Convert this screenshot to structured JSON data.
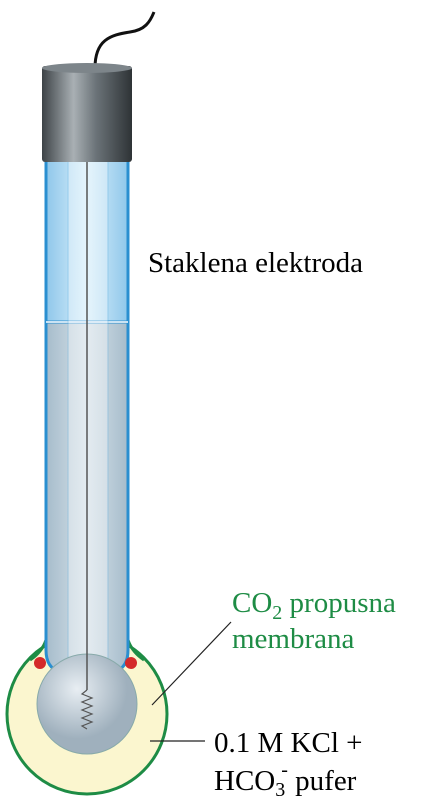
{
  "labels": {
    "electrode": "Staklena elektroda",
    "membrane": {
      "lines": [
        [
          "CO",
          "2",
          " propusna"
        ],
        [
          "membrana"
        ]
      ]
    },
    "buffer": {
      "lines": [
        [
          "0.1 M KCl +"
        ],
        [
          "HCO",
          "3",
          "-",
          " pufer"
        ]
      ]
    }
  }
}
